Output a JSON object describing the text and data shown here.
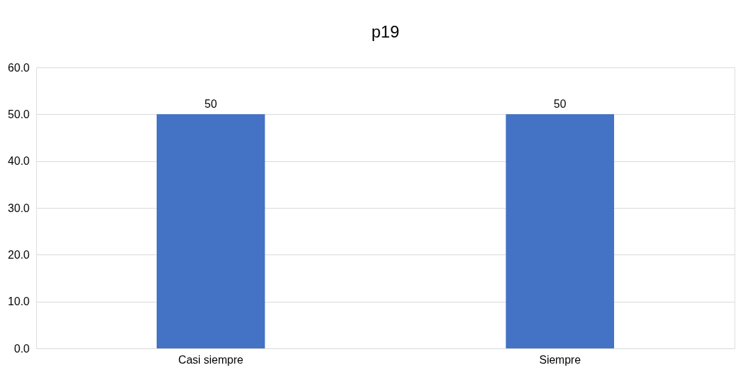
{
  "chart_data": {
    "type": "bar",
    "title": "p19",
    "categories": [
      "Casi siempre",
      "Siempre"
    ],
    "values": [
      50,
      50
    ],
    "color": "#4472c4",
    "ylim": [
      0,
      60
    ],
    "yticks": [
      {
        "value": 0,
        "label": "0.0"
      },
      {
        "value": 10,
        "label": "10.0"
      },
      {
        "value": 20,
        "label": "20.0"
      },
      {
        "value": 30,
        "label": "30.0"
      },
      {
        "value": 40,
        "label": "40.0"
      },
      {
        "value": 50,
        "label": "50.0"
      },
      {
        "value": 60,
        "label": "60.0"
      }
    ],
    "grid": "y",
    "data_labels": true
  }
}
